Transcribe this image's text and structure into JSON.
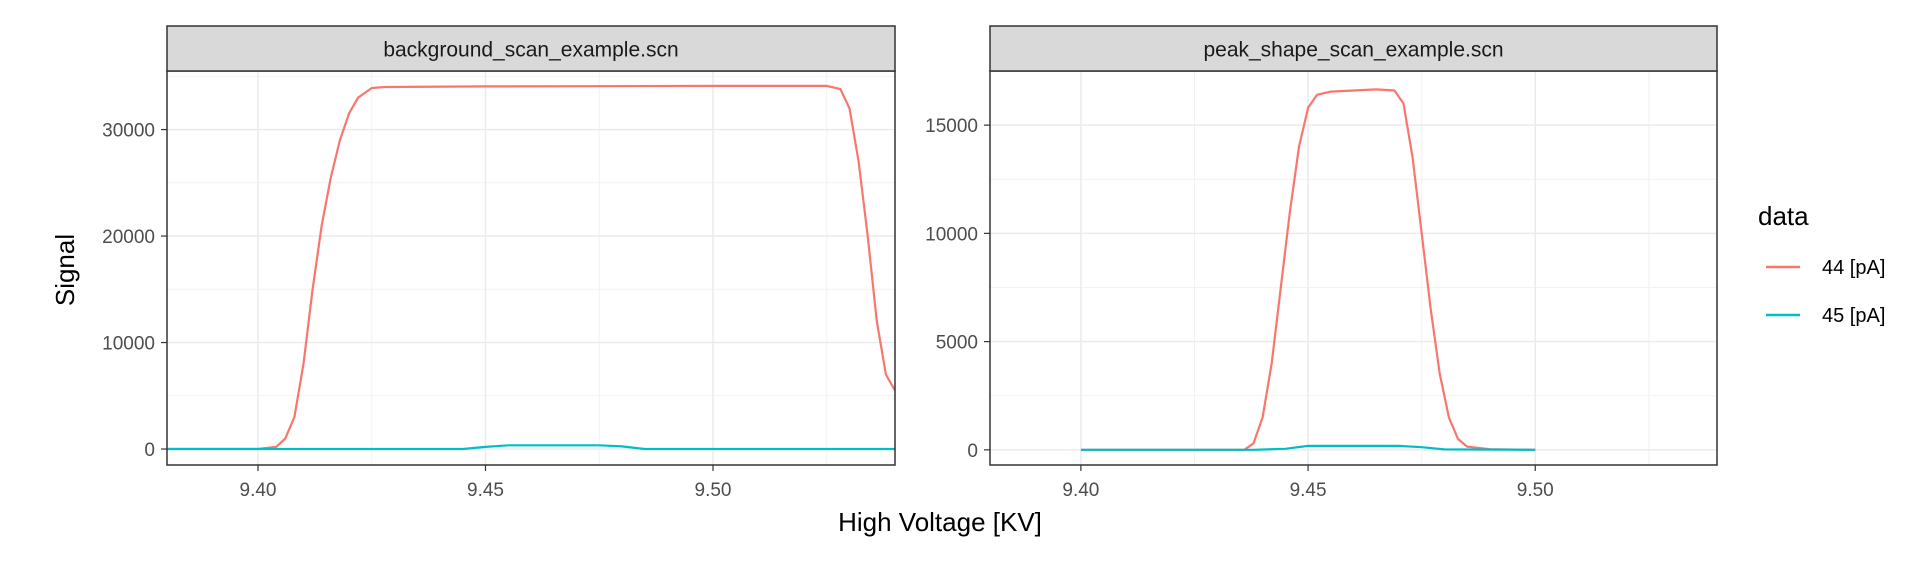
{
  "chart_data": {
    "type": "line",
    "xlabel": "High Voltage [KV]",
    "ylabel": "Signal",
    "legend": {
      "title": "data",
      "placement": "right",
      "entries": [
        {
          "label": "44 [pA]",
          "color": "#F8766D"
        },
        {
          "label": "45 [pA]",
          "color": "#00BFC4"
        }
      ]
    },
    "grid": true,
    "xlim": [
      9.38,
      9.54
    ],
    "xticks": [
      "9.40",
      "9.45",
      "9.50"
    ],
    "panels": [
      {
        "title": "background_scan_example.scn",
        "ylim": [
          -1500,
          35500
        ],
        "yticks": [
          0,
          10000,
          20000,
          30000
        ],
        "series": [
          {
            "name": "44 [pA]",
            "color": "#F8766D",
            "x": [
              9.38,
              9.4,
              9.404,
              9.406,
              9.408,
              9.41,
              9.412,
              9.414,
              9.416,
              9.418,
              9.42,
              9.422,
              9.425,
              9.428,
              9.45,
              9.5,
              9.525,
              9.528,
              9.53,
              9.532,
              9.534,
              9.536,
              9.538,
              9.54
            ],
            "y": [
              0,
              0,
              200,
              1000,
              3000,
              8000,
              15000,
              21000,
              25500,
              29000,
              31500,
              33000,
              33900,
              34000,
              34050,
              34100,
              34100,
              33800,
              32000,
              27000,
              20000,
              12000,
              7000,
              5500
            ]
          },
          {
            "name": "45 [pA]",
            "color": "#00BFC4",
            "x": [
              9.38,
              9.445,
              9.45,
              9.455,
              9.475,
              9.48,
              9.485,
              9.54
            ],
            "y": [
              0,
              0,
              200,
              350,
              350,
              250,
              0,
              0
            ]
          }
        ]
      },
      {
        "title": "peak_shape_scan_example.scn",
        "ylim": [
          -700,
          17500
        ],
        "yticks": [
          0,
          5000,
          10000,
          15000
        ],
        "series": [
          {
            "name": "44 [pA]",
            "color": "#F8766D",
            "x": [
              9.4,
              9.436,
              9.438,
              9.44,
              9.442,
              9.444,
              9.446,
              9.448,
              9.45,
              9.452,
              9.455,
              9.46,
              9.465,
              9.469,
              9.471,
              9.473,
              9.475,
              9.477,
              9.479,
              9.481,
              9.483,
              9.485,
              9.49,
              9.5
            ],
            "y": [
              0,
              0,
              300,
              1500,
              4000,
              7500,
              11000,
              14000,
              15800,
              16400,
              16550,
              16600,
              16650,
              16600,
              16000,
              13500,
              10000,
              6500,
              3500,
              1500,
              500,
              150,
              30,
              0
            ]
          },
          {
            "name": "45 [pA]",
            "color": "#00BFC4",
            "x": [
              9.4,
              9.438,
              9.445,
              9.45,
              9.47,
              9.475,
              9.48,
              9.5
            ],
            "y": [
              0,
              0,
              50,
              180,
              180,
              120,
              20,
              0
            ]
          }
        ]
      }
    ]
  }
}
